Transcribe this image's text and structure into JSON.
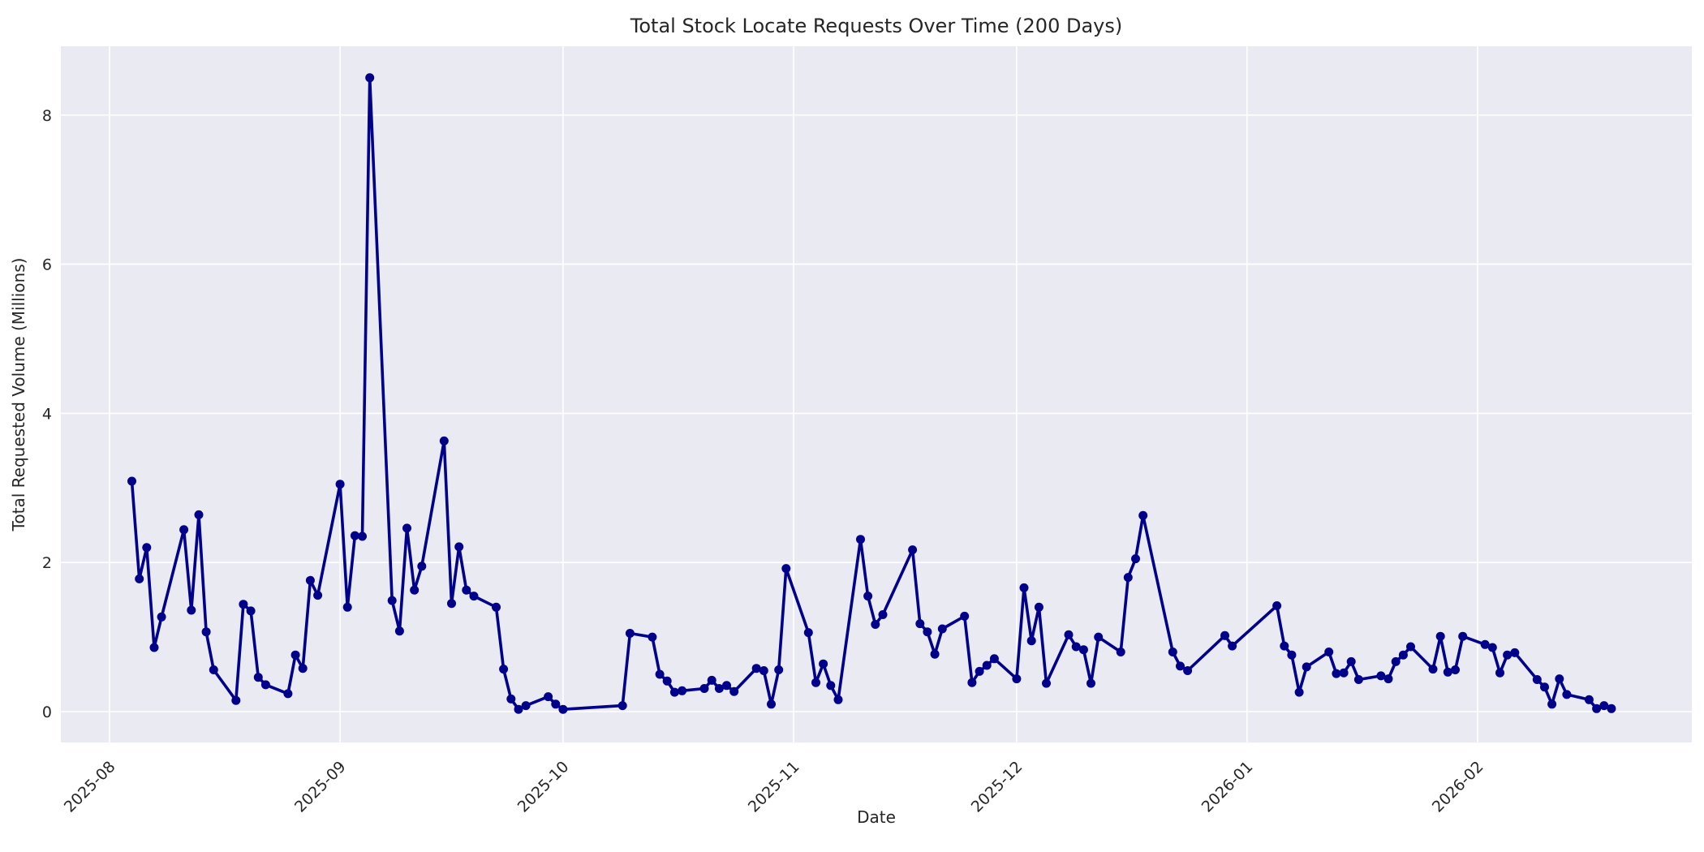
{
  "chart_data": {
    "type": "line",
    "title": "Total Stock Locate Requests Over Time (200 Days)",
    "xlabel": "Date",
    "ylabel": "Total Requested Volume (Millions)",
    "grid": true,
    "legend": false,
    "ylim": [
      -0.42,
      8.93
    ],
    "y_ticks": [
      0,
      2,
      4,
      6,
      8
    ],
    "x_ticks": [
      {
        "label": "2025-08",
        "date": "2025-08-01"
      },
      {
        "label": "2025-09",
        "date": "2025-09-01"
      },
      {
        "label": "2025-10",
        "date": "2025-10-01"
      },
      {
        "label": "2025-11",
        "date": "2025-11-01"
      },
      {
        "label": "2025-12",
        "date": "2025-12-01"
      },
      {
        "label": "2026-01",
        "date": "2026-01-01"
      },
      {
        "label": "2026-02",
        "date": "2026-02-01"
      }
    ],
    "colors": {
      "line": "#00008B",
      "marker": "#00008B",
      "plot_background": "#EAEAF2",
      "grid": "#FFFFFF",
      "text": "#262626",
      "figure_background": "#FFFFFF"
    },
    "series": [
      {
        "name": "Total Requested Volume",
        "color": "#00008B",
        "points": [
          [
            "2025-08-04",
            3.09
          ],
          [
            "2025-08-05",
            1.78
          ],
          [
            "2025-08-06",
            2.2
          ],
          [
            "2025-08-07",
            0.86
          ],
          [
            "2025-08-08",
            1.27
          ],
          [
            "2025-08-11",
            2.44
          ],
          [
            "2025-08-12",
            1.36
          ],
          [
            "2025-08-13",
            2.64
          ],
          [
            "2025-08-14",
            1.07
          ],
          [
            "2025-08-15",
            0.56
          ],
          [
            "2025-08-18",
            0.15
          ],
          [
            "2025-08-19",
            1.44
          ],
          [
            "2025-08-20",
            1.35
          ],
          [
            "2025-08-21",
            0.46
          ],
          [
            "2025-08-22",
            0.36
          ],
          [
            "2025-08-25",
            0.24
          ],
          [
            "2025-08-26",
            0.76
          ],
          [
            "2025-08-27",
            0.58
          ],
          [
            "2025-08-28",
            1.76
          ],
          [
            "2025-08-29",
            1.56
          ],
          [
            "2025-09-01",
            3.05
          ],
          [
            "2025-09-02",
            1.4
          ],
          [
            "2025-09-03",
            2.36
          ],
          [
            "2025-09-04",
            2.35
          ],
          [
            "2025-09-05",
            8.5
          ],
          [
            "2025-09-08",
            1.49
          ],
          [
            "2025-09-09",
            1.08
          ],
          [
            "2025-09-10",
            2.46
          ],
          [
            "2025-09-11",
            1.63
          ],
          [
            "2025-09-12",
            1.95
          ],
          [
            "2025-09-15",
            3.63
          ],
          [
            "2025-09-16",
            1.45
          ],
          [
            "2025-09-17",
            2.21
          ],
          [
            "2025-09-18",
            1.63
          ],
          [
            "2025-09-19",
            1.55
          ],
          [
            "2025-09-22",
            1.4
          ],
          [
            "2025-09-23",
            0.57
          ],
          [
            "2025-09-24",
            0.17
          ],
          [
            "2025-09-25",
            0.03
          ],
          [
            "2025-09-26",
            0.08
          ],
          [
            "2025-09-29",
            0.2
          ],
          [
            "2025-09-30",
            0.1
          ],
          [
            "2025-10-01",
            0.03
          ],
          [
            "2025-10-09",
            0.08
          ],
          [
            "2025-10-10",
            1.05
          ],
          [
            "2025-10-13",
            1.0
          ],
          [
            "2025-10-14",
            0.5
          ],
          [
            "2025-10-15",
            0.41
          ],
          [
            "2025-10-16",
            0.26
          ],
          [
            "2025-10-17",
            0.28
          ],
          [
            "2025-10-20",
            0.31
          ],
          [
            "2025-10-21",
            0.42
          ],
          [
            "2025-10-22",
            0.31
          ],
          [
            "2025-10-23",
            0.35
          ],
          [
            "2025-10-24",
            0.27
          ],
          [
            "2025-10-27",
            0.58
          ],
          [
            "2025-10-28",
            0.55
          ],
          [
            "2025-10-29",
            0.1
          ],
          [
            "2025-10-30",
            0.56
          ],
          [
            "2025-10-31",
            1.92
          ],
          [
            "2025-11-03",
            1.06
          ],
          [
            "2025-11-04",
            0.39
          ],
          [
            "2025-11-05",
            0.64
          ],
          [
            "2025-11-06",
            0.35
          ],
          [
            "2025-11-07",
            0.16
          ],
          [
            "2025-11-10",
            2.31
          ],
          [
            "2025-11-11",
            1.55
          ],
          [
            "2025-11-12",
            1.17
          ],
          [
            "2025-11-13",
            1.3
          ],
          [
            "2025-11-17",
            2.17
          ],
          [
            "2025-11-18",
            1.18
          ],
          [
            "2025-11-19",
            1.07
          ],
          [
            "2025-11-20",
            0.77
          ],
          [
            "2025-11-21",
            1.11
          ],
          [
            "2025-11-24",
            1.28
          ],
          [
            "2025-11-25",
            0.39
          ],
          [
            "2025-11-26",
            0.54
          ],
          [
            "2025-11-27",
            0.62
          ],
          [
            "2025-11-28",
            0.71
          ],
          [
            "2025-12-01",
            0.44
          ],
          [
            "2025-12-02",
            1.66
          ],
          [
            "2025-12-03",
            0.95
          ],
          [
            "2025-12-04",
            1.4
          ],
          [
            "2025-12-05",
            0.38
          ],
          [
            "2025-12-08",
            1.03
          ],
          [
            "2025-12-09",
            0.87
          ],
          [
            "2025-12-10",
            0.83
          ],
          [
            "2025-12-11",
            0.38
          ],
          [
            "2025-12-12",
            1.0
          ],
          [
            "2025-12-15",
            0.8
          ],
          [
            "2025-12-16",
            1.8
          ],
          [
            "2025-12-17",
            2.05
          ],
          [
            "2025-12-18",
            2.63
          ],
          [
            "2025-12-22",
            0.8
          ],
          [
            "2025-12-23",
            0.61
          ],
          [
            "2025-12-24",
            0.55
          ],
          [
            "2025-12-29",
            1.02
          ],
          [
            "2025-12-30",
            0.88
          ],
          [
            "2026-01-05",
            1.42
          ],
          [
            "2026-01-06",
            0.88
          ],
          [
            "2026-01-07",
            0.76
          ],
          [
            "2026-01-08",
            0.26
          ],
          [
            "2026-01-09",
            0.6
          ],
          [
            "2026-01-12",
            0.8
          ],
          [
            "2026-01-13",
            0.51
          ],
          [
            "2026-01-14",
            0.52
          ],
          [
            "2026-01-15",
            0.67
          ],
          [
            "2026-01-16",
            0.43
          ],
          [
            "2026-01-19",
            0.48
          ],
          [
            "2026-01-20",
            0.44
          ],
          [
            "2026-01-21",
            0.67
          ],
          [
            "2026-01-22",
            0.76
          ],
          [
            "2026-01-23",
            0.87
          ],
          [
            "2026-01-26",
            0.57
          ],
          [
            "2026-01-27",
            1.01
          ],
          [
            "2026-01-28",
            0.53
          ],
          [
            "2026-01-29",
            0.56
          ],
          [
            "2026-01-30",
            1.01
          ],
          [
            "2026-02-02",
            0.9
          ],
          [
            "2026-02-03",
            0.86
          ],
          [
            "2026-02-04",
            0.52
          ],
          [
            "2026-02-05",
            0.76
          ],
          [
            "2026-02-06",
            0.79
          ],
          [
            "2026-02-09",
            0.43
          ],
          [
            "2026-02-10",
            0.33
          ],
          [
            "2026-02-11",
            0.1
          ],
          [
            "2026-02-12",
            0.44
          ],
          [
            "2026-02-13",
            0.23
          ],
          [
            "2026-02-16",
            0.16
          ],
          [
            "2026-02-17",
            0.04
          ],
          [
            "2026-02-18",
            0.08
          ],
          [
            "2026-02-19",
            0.04
          ]
        ]
      }
    ]
  }
}
